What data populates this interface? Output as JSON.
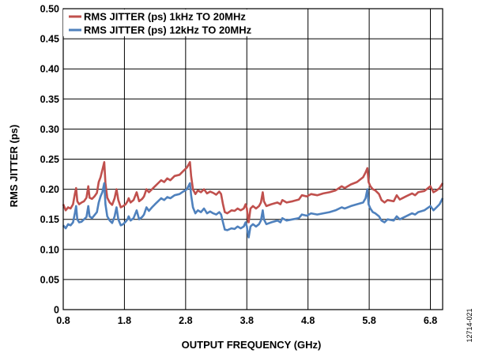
{
  "chart_data": {
    "type": "line",
    "xlabel": "OUTPUT FREQUENCY (GHz)",
    "ylabel": "RMS JITTER (ps)",
    "xlim": [
      0.8,
      7.0
    ],
    "ylim": [
      0,
      0.5
    ],
    "x_ticks": [
      "0.8",
      "1.8",
      "2.8",
      "3.8",
      "4.8",
      "5.8",
      "6.8"
    ],
    "x_tick_values": [
      0.8,
      1.8,
      2.8,
      3.8,
      4.8,
      5.8,
      6.8
    ],
    "y_ticks": [
      "0",
      "0.05",
      "0.10",
      "0.15",
      "0.20",
      "0.25",
      "0.30",
      "0.35",
      "0.40",
      "0.45",
      "0.50"
    ],
    "y_tick_values": [
      0,
      0.05,
      0.1,
      0.15,
      0.2,
      0.25,
      0.3,
      0.35,
      0.4,
      0.45,
      0.5
    ],
    "grid": true,
    "legend_position": "top-left",
    "figure_id": "12714-021",
    "series": [
      {
        "name": "RMS JITTER (ps) 1kHz TO 20MHz",
        "color": "#c0504d",
        "points": [
          [
            0.8,
            0.175
          ],
          [
            0.84,
            0.165
          ],
          [
            0.88,
            0.17
          ],
          [
            0.92,
            0.168
          ],
          [
            0.96,
            0.175
          ],
          [
            0.99,
            0.192
          ],
          [
            1.01,
            0.202
          ],
          [
            1.03,
            0.18
          ],
          [
            1.06,
            0.175
          ],
          [
            1.1,
            0.178
          ],
          [
            1.14,
            0.18
          ],
          [
            1.18,
            0.186
          ],
          [
            1.21,
            0.205
          ],
          [
            1.23,
            0.186
          ],
          [
            1.27,
            0.184
          ],
          [
            1.31,
            0.188
          ],
          [
            1.35,
            0.194
          ],
          [
            1.38,
            0.212
          ],
          [
            1.41,
            0.22
          ],
          [
            1.44,
            0.232
          ],
          [
            1.47,
            0.245
          ],
          [
            1.49,
            0.21
          ],
          [
            1.52,
            0.186
          ],
          [
            1.56,
            0.178
          ],
          [
            1.6,
            0.174
          ],
          [
            1.64,
            0.185
          ],
          [
            1.67,
            0.2
          ],
          [
            1.7,
            0.182
          ],
          [
            1.74,
            0.17
          ],
          [
            1.78,
            0.172
          ],
          [
            1.82,
            0.175
          ],
          [
            1.85,
            0.18
          ],
          [
            1.87,
            0.185
          ],
          [
            1.9,
            0.178
          ],
          [
            1.95,
            0.182
          ],
          [
            2.0,
            0.195
          ],
          [
            2.04,
            0.18
          ],
          [
            2.09,
            0.184
          ],
          [
            2.12,
            0.188
          ],
          [
            2.16,
            0.2
          ],
          [
            2.2,
            0.195
          ],
          [
            2.25,
            0.2
          ],
          [
            2.3,
            0.205
          ],
          [
            2.35,
            0.21
          ],
          [
            2.4,
            0.215
          ],
          [
            2.45,
            0.212
          ],
          [
            2.5,
            0.218
          ],
          [
            2.55,
            0.215
          ],
          [
            2.62,
            0.222
          ],
          [
            2.7,
            0.224
          ],
          [
            2.76,
            0.23
          ],
          [
            2.82,
            0.236
          ],
          [
            2.87,
            0.245
          ],
          [
            2.89,
            0.222
          ],
          [
            2.92,
            0.2
          ],
          [
            2.96,
            0.192
          ],
          [
            3.0,
            0.198
          ],
          [
            3.05,
            0.195
          ],
          [
            3.1,
            0.2
          ],
          [
            3.15,
            0.193
          ],
          [
            3.2,
            0.196
          ],
          [
            3.25,
            0.194
          ],
          [
            3.3,
            0.191
          ],
          [
            3.35,
            0.196
          ],
          [
            3.38,
            0.192
          ],
          [
            3.41,
            0.175
          ],
          [
            3.44,
            0.162
          ],
          [
            3.48,
            0.16
          ],
          [
            3.55,
            0.165
          ],
          [
            3.6,
            0.164
          ],
          [
            3.65,
            0.168
          ],
          [
            3.7,
            0.165
          ],
          [
            3.75,
            0.168
          ],
          [
            3.78,
            0.175
          ],
          [
            3.8,
            0.168
          ],
          [
            3.82,
            0.15
          ],
          [
            3.83,
            0.145
          ],
          [
            3.86,
            0.168
          ],
          [
            3.9,
            0.172
          ],
          [
            3.95,
            0.168
          ],
          [
            4.0,
            0.172
          ],
          [
            4.03,
            0.178
          ],
          [
            4.06,
            0.195
          ],
          [
            4.08,
            0.18
          ],
          [
            4.12,
            0.172
          ],
          [
            4.2,
            0.175
          ],
          [
            4.3,
            0.178
          ],
          [
            4.35,
            0.175
          ],
          [
            4.38,
            0.182
          ],
          [
            4.45,
            0.178
          ],
          [
            4.55,
            0.18
          ],
          [
            4.65,
            0.183
          ],
          [
            4.7,
            0.19
          ],
          [
            4.78,
            0.188
          ],
          [
            4.85,
            0.192
          ],
          [
            4.95,
            0.19
          ],
          [
            5.05,
            0.193
          ],
          [
            5.15,
            0.195
          ],
          [
            5.25,
            0.198
          ],
          [
            5.35,
            0.205
          ],
          [
            5.4,
            0.202
          ],
          [
            5.5,
            0.208
          ],
          [
            5.6,
            0.212
          ],
          [
            5.7,
            0.22
          ],
          [
            5.74,
            0.228
          ],
          [
            5.77,
            0.235
          ],
          [
            5.79,
            0.212
          ],
          [
            5.82,
            0.205
          ],
          [
            5.86,
            0.2
          ],
          [
            5.9,
            0.198
          ],
          [
            5.96,
            0.192
          ],
          [
            6.0,
            0.182
          ],
          [
            6.05,
            0.178
          ],
          [
            6.1,
            0.182
          ],
          [
            6.2,
            0.18
          ],
          [
            6.25,
            0.19
          ],
          [
            6.3,
            0.183
          ],
          [
            6.4,
            0.188
          ],
          [
            6.5,
            0.193
          ],
          [
            6.55,
            0.19
          ],
          [
            6.6,
            0.195
          ],
          [
            6.7,
            0.197
          ],
          [
            6.8,
            0.205
          ],
          [
            6.85,
            0.195
          ],
          [
            6.9,
            0.198
          ],
          [
            6.95,
            0.202
          ],
          [
            7.0,
            0.21
          ]
        ]
      },
      {
        "name": "RMS JITTER (ps) 12kHz TO 20MHz",
        "color": "#4f81bd",
        "points": [
          [
            0.8,
            0.14
          ],
          [
            0.84,
            0.135
          ],
          [
            0.88,
            0.142
          ],
          [
            0.92,
            0.14
          ],
          [
            0.96,
            0.145
          ],
          [
            0.99,
            0.16
          ],
          [
            1.01,
            0.172
          ],
          [
            1.03,
            0.15
          ],
          [
            1.06,
            0.145
          ],
          [
            1.1,
            0.146
          ],
          [
            1.14,
            0.15
          ],
          [
            1.18,
            0.154
          ],
          [
            1.21,
            0.172
          ],
          [
            1.23,
            0.155
          ],
          [
            1.27,
            0.152
          ],
          [
            1.31,
            0.157
          ],
          [
            1.35,
            0.162
          ],
          [
            1.38,
            0.178
          ],
          [
            1.41,
            0.188
          ],
          [
            1.44,
            0.195
          ],
          [
            1.47,
            0.21
          ],
          [
            1.49,
            0.175
          ],
          [
            1.52,
            0.155
          ],
          [
            1.56,
            0.148
          ],
          [
            1.6,
            0.144
          ],
          [
            1.64,
            0.155
          ],
          [
            1.67,
            0.17
          ],
          [
            1.7,
            0.15
          ],
          [
            1.74,
            0.14
          ],
          [
            1.78,
            0.142
          ],
          [
            1.82,
            0.146
          ],
          [
            1.85,
            0.15
          ],
          [
            1.87,
            0.155
          ],
          [
            1.9,
            0.148
          ],
          [
            1.95,
            0.152
          ],
          [
            2.0,
            0.165
          ],
          [
            2.04,
            0.15
          ],
          [
            2.09,
            0.154
          ],
          [
            2.12,
            0.158
          ],
          [
            2.16,
            0.17
          ],
          [
            2.2,
            0.164
          ],
          [
            2.25,
            0.17
          ],
          [
            2.3,
            0.175
          ],
          [
            2.35,
            0.18
          ],
          [
            2.4,
            0.185
          ],
          [
            2.45,
            0.182
          ],
          [
            2.5,
            0.187
          ],
          [
            2.55,
            0.185
          ],
          [
            2.62,
            0.19
          ],
          [
            2.7,
            0.192
          ],
          [
            2.76,
            0.196
          ],
          [
            2.82,
            0.2
          ],
          [
            2.87,
            0.21
          ],
          [
            2.89,
            0.19
          ],
          [
            2.92,
            0.17
          ],
          [
            2.96,
            0.16
          ],
          [
            3.0,
            0.165
          ],
          [
            3.05,
            0.162
          ],
          [
            3.1,
            0.168
          ],
          [
            3.15,
            0.16
          ],
          [
            3.2,
            0.163
          ],
          [
            3.25,
            0.16
          ],
          [
            3.3,
            0.158
          ],
          [
            3.35,
            0.162
          ],
          [
            3.38,
            0.158
          ],
          [
            3.41,
            0.145
          ],
          [
            3.44,
            0.133
          ],
          [
            3.48,
            0.132
          ],
          [
            3.55,
            0.135
          ],
          [
            3.6,
            0.134
          ],
          [
            3.65,
            0.138
          ],
          [
            3.7,
            0.135
          ],
          [
            3.75,
            0.138
          ],
          [
            3.78,
            0.145
          ],
          [
            3.8,
            0.138
          ],
          [
            3.82,
            0.125
          ],
          [
            3.83,
            0.12
          ],
          [
            3.86,
            0.138
          ],
          [
            3.9,
            0.142
          ],
          [
            3.95,
            0.138
          ],
          [
            4.0,
            0.142
          ],
          [
            4.03,
            0.148
          ],
          [
            4.06,
            0.165
          ],
          [
            4.08,
            0.15
          ],
          [
            4.12,
            0.142
          ],
          [
            4.2,
            0.145
          ],
          [
            4.3,
            0.148
          ],
          [
            4.35,
            0.145
          ],
          [
            4.38,
            0.152
          ],
          [
            4.45,
            0.148
          ],
          [
            4.55,
            0.15
          ],
          [
            4.65,
            0.152
          ],
          [
            4.7,
            0.158
          ],
          [
            4.78,
            0.156
          ],
          [
            4.85,
            0.16
          ],
          [
            4.95,
            0.158
          ],
          [
            5.05,
            0.16
          ],
          [
            5.15,
            0.162
          ],
          [
            5.25,
            0.165
          ],
          [
            5.35,
            0.17
          ],
          [
            5.4,
            0.168
          ],
          [
            5.5,
            0.172
          ],
          [
            5.6,
            0.175
          ],
          [
            5.7,
            0.178
          ],
          [
            5.74,
            0.185
          ],
          [
            5.77,
            0.2
          ],
          [
            5.79,
            0.175
          ],
          [
            5.82,
            0.168
          ],
          [
            5.86,
            0.162
          ],
          [
            5.9,
            0.16
          ],
          [
            5.96,
            0.155
          ],
          [
            6.0,
            0.148
          ],
          [
            6.05,
            0.145
          ],
          [
            6.1,
            0.15
          ],
          [
            6.2,
            0.148
          ],
          [
            6.25,
            0.155
          ],
          [
            6.3,
            0.15
          ],
          [
            6.4,
            0.155
          ],
          [
            6.5,
            0.16
          ],
          [
            6.55,
            0.158
          ],
          [
            6.6,
            0.162
          ],
          [
            6.7,
            0.165
          ],
          [
            6.8,
            0.172
          ],
          [
            6.85,
            0.165
          ],
          [
            6.9,
            0.17
          ],
          [
            6.95,
            0.175
          ],
          [
            7.0,
            0.185
          ]
        ]
      }
    ]
  }
}
